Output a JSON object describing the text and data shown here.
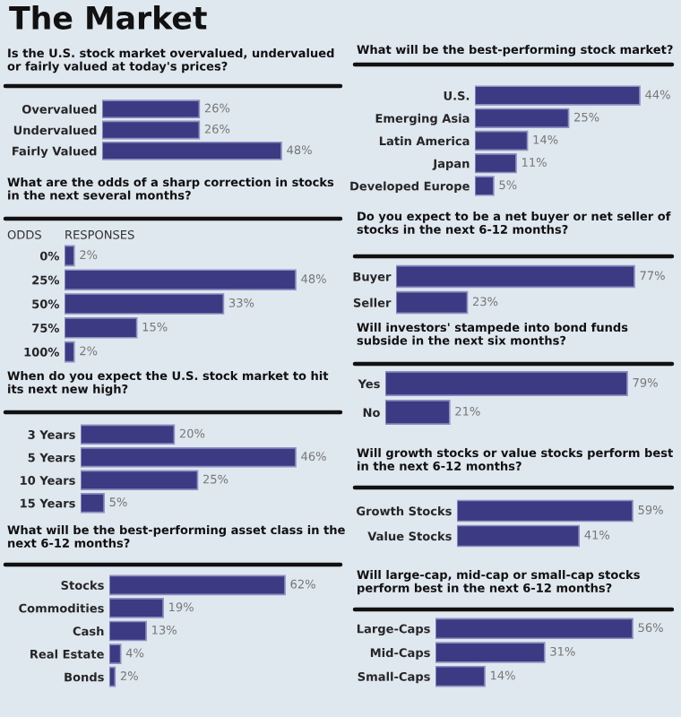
{
  "chart_data": [
    {
      "type": "other",
      "title": "The Market"
    },
    {
      "type": "bar",
      "orientation": "horizontal",
      "title": "Is the U.S. stock market overvalued, undervalued or fairly valued at today's prices?",
      "categories": [
        "Overvalued",
        "Undervalued",
        "Fairly Valued"
      ],
      "values": [
        26,
        26,
        48
      ],
      "value_labels": [
        "26%",
        "26%",
        "48%"
      ],
      "color": "#3c3a82"
    },
    {
      "type": "bar",
      "orientation": "horizontal",
      "title": "What are the odds of a sharp correction in stocks in the next several months?",
      "ylabel": "ODDS",
      "xlabel": "RESPONSES",
      "categories": [
        "0%",
        "25%",
        "50%",
        "75%",
        "100%"
      ],
      "values": [
        2,
        48,
        33,
        15,
        2
      ],
      "value_labels": [
        "2%",
        "48%",
        "33%",
        "15%",
        "2%"
      ],
      "color": "#3c3a82"
    },
    {
      "type": "bar",
      "orientation": "horizontal",
      "title": "When do you expect the U.S. stock market to hit its next new high?",
      "categories": [
        "3 Years",
        "5 Years",
        "10 Years",
        "15 Years"
      ],
      "values": [
        20,
        46,
        25,
        5
      ],
      "value_labels": [
        "20%",
        "46%",
        "25%",
        "5%"
      ],
      "color": "#3c3a82"
    },
    {
      "type": "bar",
      "orientation": "horizontal",
      "title": "What will be the best-performing asset class in the next 6-12 months?",
      "categories": [
        "Stocks",
        "Commodities",
        "Cash",
        "Real Estate",
        "Bonds"
      ],
      "values": [
        62,
        19,
        13,
        4,
        2
      ],
      "value_labels": [
        "62%",
        "19%",
        "13%",
        "4%",
        "2%"
      ],
      "color": "#3c3a82"
    },
    {
      "type": "bar",
      "orientation": "horizontal",
      "title": "What will be the best-performing stock market?",
      "categories": [
        "U.S.",
        "Emerging Asia",
        "Latin America",
        "Japan",
        "Developed Europe"
      ],
      "values": [
        44,
        25,
        14,
        11,
        5
      ],
      "value_labels": [
        "44%",
        "25%",
        "14%",
        "11%",
        "5%"
      ],
      "color": "#3c3a82"
    },
    {
      "type": "bar",
      "orientation": "horizontal",
      "title": "Do you expect to be a net buyer or net seller of stocks in the next 6-12 months?",
      "categories": [
        "Buyer",
        "Seller"
      ],
      "values": [
        77,
        23
      ],
      "value_labels": [
        "77%",
        "23%"
      ],
      "color": "#3c3a82"
    },
    {
      "type": "bar",
      "orientation": "horizontal",
      "title": "Will investors' stampede into bond funds subside in the next six months?",
      "categories": [
        "Yes",
        "No"
      ],
      "values": [
        79,
        21
      ],
      "value_labels": [
        "79%",
        "21%"
      ],
      "color": "#3c3a82"
    },
    {
      "type": "bar",
      "orientation": "horizontal",
      "title": "Will growth stocks or value stocks perform best in the next 6-12 months?",
      "categories": [
        "Growth Stocks",
        "Value Stocks"
      ],
      "values": [
        59,
        41
      ],
      "value_labels": [
        "59%",
        "41%"
      ],
      "color": "#3c3a82"
    },
    {
      "type": "bar",
      "orientation": "horizontal",
      "title": "Will large-cap, mid-cap or small-cap stocks perform best in the next 6-12 months?",
      "categories": [
        "Large-Caps",
        "Mid-Caps",
        "Small-Caps"
      ],
      "values": [
        56,
        31,
        14
      ],
      "value_labels": [
        "56%",
        "31%",
        "14%"
      ],
      "color": "#3c3a82"
    }
  ]
}
